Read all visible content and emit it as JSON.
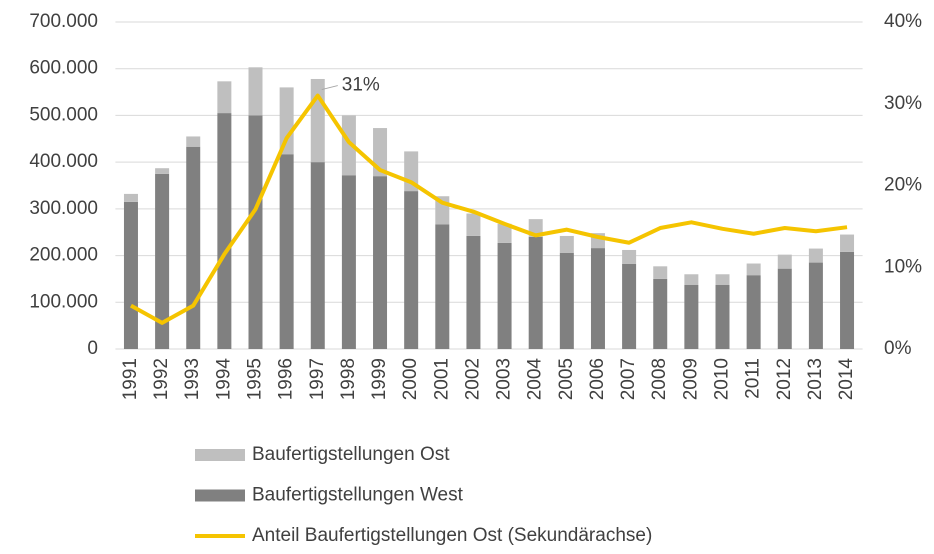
{
  "chart_data": {
    "type": "bar",
    "categories": [
      "1991",
      "1992",
      "1993",
      "1994",
      "1995",
      "1996",
      "1997",
      "1998",
      "1999",
      "2000",
      "2001",
      "2002",
      "2003",
      "2004",
      "2005",
      "2006",
      "2007",
      "2008",
      "2009",
      "2010",
      "2011",
      "2012",
      "2013",
      "2014"
    ],
    "series": [
      {
        "name": "Baufertigstellungen West",
        "color": "#808080",
        "type": "bar",
        "values": [
          315000,
          375000,
          433000,
          505000,
          500000,
          417000,
          400000,
          372000,
          370000,
          338000,
          267000,
          242000,
          227000,
          240000,
          206000,
          216000,
          182000,
          150000,
          137000,
          137000,
          158000,
          172000,
          185000,
          208000
        ]
      },
      {
        "name": "Baufertigstellungen Ost",
        "color": "#bfbfbf",
        "type": "bar",
        "values": [
          17000,
          12000,
          22000,
          68000,
          103000,
          143000,
          178000,
          128000,
          103000,
          85000,
          60000,
          48000,
          41000,
          38000,
          36000,
          32000,
          30000,
          27000,
          23000,
          23000,
          25000,
          30000,
          30000,
          37000
        ]
      },
      {
        "name": "Anteil Baufertigstellungen Ost (Sekundärachse)",
        "color": "#f5c400",
        "type": "line",
        "axis": "y2",
        "values": [
          5.3,
          3.2,
          5.3,
          11.6,
          17.1,
          25.8,
          31,
          25.3,
          21.9,
          20.4,
          17.9,
          16.8,
          15.3,
          13.9,
          14.6,
          13.7,
          13,
          14.8,
          15.5,
          14.7,
          14.1,
          14.8,
          14.4,
          14.9
        ],
        "value_labels": [
          null,
          null,
          null,
          null,
          null,
          null,
          "31%",
          null,
          null,
          null,
          null,
          null,
          null,
          null,
          null,
          null,
          null,
          null,
          null,
          null,
          null,
          null,
          null,
          null
        ]
      }
    ],
    "ylim": [
      0,
      700000
    ],
    "yticks": [
      0,
      {
        "value": 100000,
        "label": "100.000"
      },
      {
        "value": 200000,
        "label": "200.000"
      },
      {
        "value": 300000,
        "label": "300.000"
      },
      {
        "value": 400000,
        "label": "400.000"
      },
      {
        "value": 500000,
        "label": "500.000"
      },
      {
        "value": 600000,
        "label": "600.000"
      },
      {
        "value": 700000,
        "label": "700.000"
      }
    ],
    "y2lim": [
      0,
      40
    ],
    "y2ticks": [
      {
        "value": 0,
        "label": "0%"
      },
      {
        "value": 10,
        "label": "10%"
      },
      {
        "value": 20,
        "label": "20%"
      },
      {
        "value": 30,
        "label": "30%"
      },
      {
        "value": 40,
        "label": "40%"
      }
    ],
    "grid": true,
    "stacked": true,
    "legend": "bottom"
  }
}
